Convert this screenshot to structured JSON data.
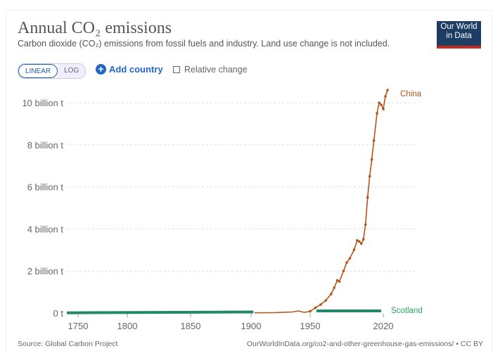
{
  "header": {
    "title": "Annual CO₂ emissions",
    "subtitle": "Carbon dioxide (CO₂) emissions from fossil fuels and industry. Land use change is not included.",
    "logo": "Our World in Data"
  },
  "controls": {
    "linear": "LINEAR",
    "log": "LOG",
    "add_country": "Add country",
    "relative_change": "Relative change"
  },
  "footer": {
    "source": "Source: Global Carbon Project",
    "url": "OurWorldInData.org/co2-and-other-greenhouse-gas-emissions/ • CC BY"
  },
  "colors": {
    "china": "#b5541a",
    "scotland": "#23876a"
  },
  "chart_data": {
    "type": "line",
    "title": "Annual CO₂ emissions",
    "ylabel": "",
    "xlabel": "",
    "ylim": [
      0,
      10.6
    ],
    "y_ticks": [
      {
        "v": 0,
        "label": "0 t"
      },
      {
        "v": 2,
        "label": "2 billion t"
      },
      {
        "v": 4,
        "label": "4 billion t"
      },
      {
        "v": 6,
        "label": "6 billion t"
      },
      {
        "v": 8,
        "label": "8 billion t"
      },
      {
        "v": 10,
        "label": "10 billion t"
      }
    ],
    "x_ticks": [
      1750,
      1800,
      1850,
      1900,
      1950,
      2020
    ],
    "series": [
      {
        "name": "China",
        "unit": "billion t",
        "points": [
          [
            1903,
            0.01
          ],
          [
            1920,
            0.02
          ],
          [
            1935,
            0.05
          ],
          [
            1940,
            0.1
          ],
          [
            1945,
            0.03
          ],
          [
            1950,
            0.08
          ],
          [
            1955,
            0.25
          ],
          [
            1960,
            0.4
          ],
          [
            1965,
            0.6
          ],
          [
            1970,
            0.9
          ],
          [
            1973,
            1.2
          ],
          [
            1976,
            1.55
          ],
          [
            1978,
            1.5
          ],
          [
            1982,
            2.0
          ],
          [
            1985,
            2.4
          ],
          [
            1988,
            2.6
          ],
          [
            1992,
            3.0
          ],
          [
            1995,
            3.45
          ],
          [
            1997,
            3.4
          ],
          [
            1999,
            3.3
          ],
          [
            2001,
            3.5
          ],
          [
            2003,
            4.2
          ],
          [
            2005,
            5.5
          ],
          [
            2007,
            6.5
          ],
          [
            2009,
            7.3
          ],
          [
            2011,
            8.2
          ],
          [
            2014,
            9.5
          ],
          [
            2016,
            10.0
          ],
          [
            2018,
            9.9
          ],
          [
            2020,
            9.7
          ],
          [
            2022,
            10.3
          ],
          [
            2024,
            10.6
          ]
        ]
      },
      {
        "name": "Scotland",
        "unit": "billion t",
        "segments": [
          [
            [
              1740,
              0.01
            ],
            [
              1902,
              0.05
            ]
          ],
          [
            [
              1956,
              0.1
            ],
            [
              2018,
              0.1
            ]
          ]
        ]
      }
    ]
  }
}
